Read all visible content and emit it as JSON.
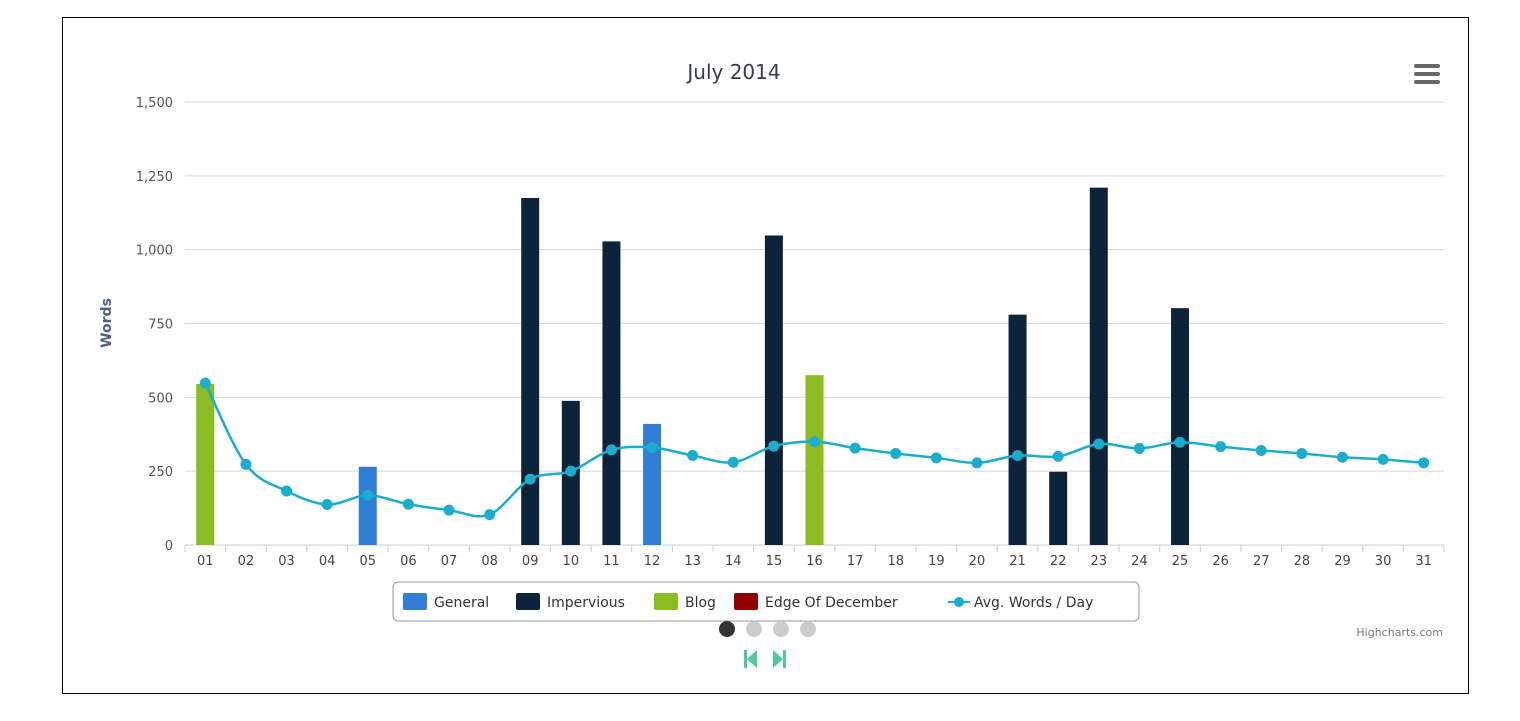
{
  "chart_data": {
    "type": "bar",
    "title": "July 2014",
    "xlabel": "",
    "ylabel": "Words",
    "ylim": [
      0,
      1500
    ],
    "yticks": [
      0,
      250,
      500,
      750,
      1000,
      1250,
      1500
    ],
    "ytick_labels": [
      "0",
      "250",
      "500",
      "750",
      "1,000",
      "1,250",
      "1,500"
    ],
    "grid": true,
    "legend_position": "bottom-center",
    "categories": [
      "01",
      "02",
      "03",
      "04",
      "05",
      "06",
      "07",
      "08",
      "09",
      "10",
      "11",
      "12",
      "13",
      "14",
      "15",
      "16",
      "17",
      "18",
      "19",
      "20",
      "21",
      "22",
      "23",
      "24",
      "25",
      "26",
      "27",
      "28",
      "29",
      "30",
      "31"
    ],
    "series": [
      {
        "name": "General",
        "type": "bar",
        "color": "#2f7ed8",
        "values": [
          0,
          0,
          0,
          0,
          265,
          0,
          0,
          0,
          0,
          0,
          0,
          410,
          0,
          0,
          0,
          0,
          0,
          0,
          0,
          0,
          0,
          0,
          0,
          0,
          0,
          0,
          0,
          0,
          0,
          0,
          0
        ]
      },
      {
        "name": "Impervious",
        "type": "bar",
        "color": "#0d233a",
        "values": [
          0,
          0,
          0,
          0,
          0,
          0,
          0,
          0,
          1175,
          488,
          1028,
          0,
          0,
          0,
          1048,
          0,
          0,
          0,
          0,
          0,
          780,
          248,
          1210,
          0,
          802,
          0,
          0,
          0,
          0,
          0,
          0
        ]
      },
      {
        "name": "Blog",
        "type": "bar",
        "color": "#8bbc21",
        "values": [
          545,
          0,
          0,
          0,
          0,
          0,
          0,
          0,
          0,
          0,
          0,
          0,
          0,
          0,
          0,
          575,
          0,
          0,
          0,
          0,
          0,
          0,
          0,
          0,
          0,
          0,
          0,
          0,
          0,
          0,
          0
        ]
      },
      {
        "name": "Edge Of December",
        "type": "bar",
        "color": "#910000",
        "values": [
          0,
          0,
          0,
          0,
          0,
          0,
          0,
          0,
          0,
          0,
          0,
          0,
          0,
          0,
          0,
          0,
          0,
          0,
          0,
          0,
          0,
          0,
          0,
          0,
          0,
          0,
          0,
          0,
          0,
          0,
          0
        ]
      },
      {
        "name": "Avg. Words / Day",
        "type": "line",
        "color": "#1aadce",
        "values": [
          548,
          273,
          183,
          137,
          168,
          138,
          118,
          103,
          223,
          250,
          322,
          330,
          303,
          280,
          335,
          350,
          328,
          310,
          295,
          278,
          303,
          300,
          342,
          327,
          348,
          333,
          320,
          310,
          297,
          290,
          278
        ]
      }
    ]
  },
  "ui": {
    "menu_icon": "hamburger-menu-icon",
    "credits": "Highcharts.com",
    "pager": {
      "pages": 4,
      "current": 1
    },
    "nav_icons": [
      "first-page-icon",
      "last-page-icon"
    ],
    "nav_color": "#4fc99c"
  }
}
